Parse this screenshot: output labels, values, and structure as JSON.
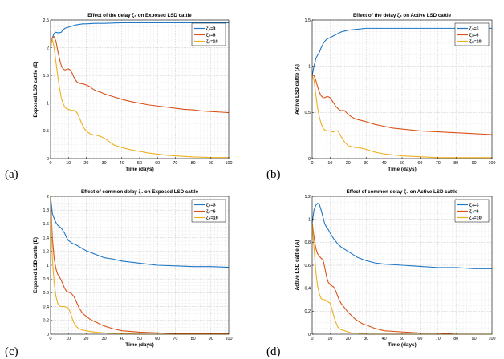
{
  "chart_data": [
    {
      "panel_label": "(a)",
      "type": "line",
      "title": "Effect of the delay ζ₃ on Exposed LSD cattle",
      "xlabel": "Time (days)",
      "ylabel": "Exposed LSD cattle (E)",
      "xlim": [
        0,
        100
      ],
      "ylim": [
        0,
        2.5
      ],
      "xticks": [
        "0",
        "10",
        "20",
        "30",
        "40",
        "50",
        "60",
        "70",
        "80",
        "90",
        "100"
      ],
      "yticks": [
        "0",
        "0.5",
        "1",
        "1.5",
        "2",
        "2.5"
      ],
      "grid": true,
      "legend_position": "top-right",
      "series": [
        {
          "name": "ζ₃=3",
          "color": "#1f77c4",
          "x": [
            0,
            1,
            2,
            3,
            4,
            5,
            6,
            7,
            8,
            9,
            10,
            12,
            14,
            16,
            18,
            20,
            25,
            30,
            40,
            50,
            60,
            70,
            80,
            90,
            100
          ],
          "y": [
            2.0,
            2.18,
            2.26,
            2.28,
            2.27,
            2.27,
            2.28,
            2.32,
            2.35,
            2.36,
            2.37,
            2.39,
            2.41,
            2.42,
            2.43,
            2.43,
            2.44,
            2.44,
            2.45,
            2.45,
            2.45,
            2.45,
            2.45,
            2.45,
            2.45
          ]
        },
        {
          "name": "ζ₃=6",
          "color": "#d95319",
          "x": [
            0,
            1,
            2,
            3,
            4,
            5,
            6,
            7,
            8,
            9,
            10,
            11,
            12,
            13,
            14,
            15,
            16,
            18,
            20,
            22,
            24,
            26,
            28,
            30,
            35,
            40,
            45,
            50,
            55,
            60,
            65,
            70,
            75,
            80,
            85,
            90,
            95,
            100
          ],
          "y": [
            2.0,
            2.18,
            2.2,
            2.12,
            1.95,
            1.8,
            1.68,
            1.62,
            1.6,
            1.61,
            1.62,
            1.6,
            1.55,
            1.48,
            1.42,
            1.38,
            1.36,
            1.35,
            1.33,
            1.3,
            1.25,
            1.22,
            1.2,
            1.17,
            1.12,
            1.07,
            1.03,
            1.0,
            0.97,
            0.95,
            0.93,
            0.91,
            0.89,
            0.88,
            0.86,
            0.85,
            0.84,
            0.83
          ]
        },
        {
          "name": "ζ₃=10",
          "color": "#edb120",
          "x": [
            0,
            1,
            2,
            3,
            4,
            5,
            6,
            7,
            8,
            9,
            10,
            11,
            12,
            13,
            14,
            15,
            16,
            17,
            18,
            19,
            20,
            22,
            24,
            26,
            28,
            30,
            32,
            34,
            36,
            38,
            40,
            45,
            50,
            55,
            60,
            65,
            70,
            80,
            90,
            100
          ],
          "y": [
            2.0,
            2.15,
            2.0,
            1.75,
            1.5,
            1.28,
            1.1,
            1.0,
            0.93,
            0.9,
            0.89,
            0.88,
            0.87,
            0.87,
            0.86,
            0.82,
            0.75,
            0.67,
            0.6,
            0.54,
            0.5,
            0.45,
            0.43,
            0.42,
            0.4,
            0.37,
            0.33,
            0.28,
            0.24,
            0.22,
            0.2,
            0.16,
            0.13,
            0.1,
            0.08,
            0.06,
            0.05,
            0.03,
            0.02,
            0.02
          ]
        }
      ]
    },
    {
      "panel_label": "(b)",
      "type": "line",
      "title": "Effect of the delay ζ₃ on Active LSD  cattle",
      "xlabel": "Time (days)",
      "ylabel": "Active LSD cattle (A)",
      "xlim": [
        0,
        100
      ],
      "ylim": [
        0,
        1.5
      ],
      "xticks": [
        "0",
        "10",
        "20",
        "30",
        "40",
        "50",
        "60",
        "70",
        "80",
        "90",
        "100"
      ],
      "yticks": [
        "0",
        "0.5",
        "1",
        "1.5"
      ],
      "grid": true,
      "legend_position": "top-right",
      "series": [
        {
          "name": "ζ₃=3",
          "color": "#1f77c4",
          "x": [
            0,
            1,
            2,
            3,
            4,
            5,
            6,
            7,
            8,
            9,
            10,
            12,
            14,
            16,
            18,
            20,
            25,
            30,
            40,
            50,
            60,
            70,
            80,
            90,
            100
          ],
          "y": [
            0.9,
            1.0,
            1.08,
            1.12,
            1.15,
            1.2,
            1.24,
            1.27,
            1.29,
            1.3,
            1.31,
            1.33,
            1.35,
            1.37,
            1.38,
            1.39,
            1.4,
            1.41,
            1.41,
            1.41,
            1.41,
            1.41,
            1.41,
            1.41,
            1.41
          ]
        },
        {
          "name": "ζ₃=6",
          "color": "#d95319",
          "x": [
            0,
            1,
            2,
            3,
            4,
            5,
            6,
            7,
            8,
            9,
            10,
            11,
            12,
            13,
            14,
            15,
            16,
            17,
            18,
            19,
            20,
            22,
            24,
            26,
            28,
            30,
            35,
            40,
            45,
            50,
            60,
            70,
            80,
            90,
            100
          ],
          "y": [
            0.9,
            0.9,
            0.85,
            0.78,
            0.72,
            0.68,
            0.66,
            0.66,
            0.67,
            0.67,
            0.66,
            0.63,
            0.6,
            0.57,
            0.55,
            0.53,
            0.52,
            0.52,
            0.52,
            0.5,
            0.48,
            0.45,
            0.43,
            0.42,
            0.41,
            0.4,
            0.37,
            0.35,
            0.33,
            0.32,
            0.3,
            0.29,
            0.28,
            0.27,
            0.26
          ]
        },
        {
          "name": "ζ₃=10",
          "color": "#edb120",
          "x": [
            0,
            1,
            2,
            3,
            4,
            5,
            6,
            7,
            8,
            9,
            10,
            11,
            12,
            13,
            14,
            15,
            16,
            18,
            20,
            22,
            24,
            26,
            28,
            30,
            35,
            40,
            45,
            50,
            60,
            70,
            80,
            90,
            100
          ],
          "y": [
            0.9,
            0.85,
            0.7,
            0.55,
            0.45,
            0.38,
            0.33,
            0.31,
            0.3,
            0.3,
            0.3,
            0.29,
            0.29,
            0.3,
            0.3,
            0.28,
            0.24,
            0.18,
            0.14,
            0.13,
            0.12,
            0.12,
            0.11,
            0.1,
            0.07,
            0.05,
            0.04,
            0.03,
            0.02,
            0.01,
            0.01,
            0.01,
            0.01
          ]
        }
      ]
    },
    {
      "panel_label": "(c)",
      "type": "line",
      "title": "Effect of common delay ζ₄ on Exposed LSD cattle",
      "xlabel": "Time (days)",
      "ylabel": "Exposed LSD cattle (E)",
      "xlim": [
        0,
        100
      ],
      "ylim": [
        0,
        2
      ],
      "xticks": [
        "0",
        "10",
        "20",
        "30",
        "40",
        "50",
        "60",
        "70",
        "80",
        "90",
        "100"
      ],
      "yticks": [
        "0",
        "0.2",
        "0.4",
        "0.6",
        "0.8",
        "1",
        "1.2",
        "1.4",
        "1.6",
        "1.8",
        "2"
      ],
      "grid": true,
      "legend_position": "top-right",
      "series": [
        {
          "name": "ζ₄=3",
          "color": "#1f77c4",
          "x": [
            0,
            1,
            2,
            3,
            4,
            5,
            6,
            7,
            8,
            9,
            10,
            12,
            14,
            16,
            18,
            20,
            25,
            30,
            35,
            40,
            50,
            60,
            70,
            80,
            90,
            100
          ],
          "y": [
            2.0,
            1.75,
            1.68,
            1.62,
            1.58,
            1.56,
            1.54,
            1.5,
            1.46,
            1.4,
            1.36,
            1.32,
            1.3,
            1.27,
            1.24,
            1.21,
            1.16,
            1.11,
            1.09,
            1.06,
            1.03,
            1.0,
            0.99,
            0.98,
            0.98,
            0.97
          ]
        },
        {
          "name": "ζ₄=6",
          "color": "#d95319",
          "x": [
            0,
            1,
            2,
            3,
            4,
            5,
            6,
            7,
            8,
            9,
            10,
            11,
            12,
            13,
            14,
            15,
            16,
            18,
            20,
            22,
            24,
            26,
            28,
            30,
            35,
            40,
            45,
            50,
            60,
            70,
            80,
            90,
            100
          ],
          "y": [
            2.0,
            1.4,
            1.1,
            0.95,
            0.87,
            0.83,
            0.78,
            0.72,
            0.66,
            0.62,
            0.61,
            0.6,
            0.58,
            0.55,
            0.5,
            0.44,
            0.38,
            0.3,
            0.26,
            0.22,
            0.19,
            0.17,
            0.14,
            0.12,
            0.08,
            0.05,
            0.04,
            0.03,
            0.02,
            0.01,
            0.01,
            0.01,
            0.01
          ]
        },
        {
          "name": "ζ₄=10",
          "color": "#edb120",
          "x": [
            0,
            1,
            2,
            3,
            4,
            5,
            6,
            7,
            8,
            9,
            10,
            11,
            12,
            13,
            14,
            15,
            16,
            18,
            20,
            22,
            25,
            30,
            35,
            40,
            50,
            60,
            70,
            80,
            90,
            100
          ],
          "y": [
            2.0,
            1.1,
            0.75,
            0.55,
            0.45,
            0.41,
            0.4,
            0.4,
            0.4,
            0.39,
            0.38,
            0.32,
            0.24,
            0.17,
            0.13,
            0.1,
            0.08,
            0.06,
            0.05,
            0.04,
            0.03,
            0.02,
            0.01,
            0.01,
            0.0,
            0.0,
            0.0,
            0.0,
            0.0,
            0.0
          ]
        }
      ]
    },
    {
      "panel_label": "(d)",
      "type": "line",
      "title": "Effect of common delay ζ₄ on Active LSD cattle",
      "xlabel": "Time (days)",
      "ylabel": "Active LSD cattle (A)",
      "xlim": [
        0,
        100
      ],
      "ylim": [
        0,
        1.2
      ],
      "xticks": [
        "0",
        "10",
        "20",
        "30",
        "40",
        "50",
        "60",
        "70",
        "80",
        "90",
        "100"
      ],
      "yticks": [
        "0",
        "0.2",
        "0.4",
        "0.6",
        "0.8",
        "1",
        "1.2"
      ],
      "grid": true,
      "legend_position": "top-right",
      "series": [
        {
          "name": "ζ₄=3",
          "color": "#1f77c4",
          "x": [
            0,
            1,
            2,
            3,
            4,
            5,
            6,
            7,
            8,
            9,
            10,
            12,
            14,
            16,
            18,
            20,
            25,
            30,
            35,
            40,
            50,
            60,
            70,
            80,
            90,
            100
          ],
          "y": [
            0.97,
            1.08,
            1.12,
            1.14,
            1.13,
            1.08,
            1.02,
            0.96,
            0.93,
            0.91,
            0.88,
            0.83,
            0.79,
            0.76,
            0.74,
            0.72,
            0.67,
            0.64,
            0.62,
            0.61,
            0.6,
            0.59,
            0.58,
            0.58,
            0.57,
            0.57
          ]
        },
        {
          "name": "ζ₄=6",
          "color": "#d95319",
          "x": [
            0,
            1,
            2,
            3,
            4,
            5,
            6,
            7,
            8,
            9,
            10,
            11,
            12,
            13,
            14,
            15,
            16,
            18,
            20,
            22,
            24,
            26,
            28,
            30,
            35,
            40,
            50,
            60,
            70,
            80,
            90,
            100
          ],
          "y": [
            0.97,
            0.85,
            0.75,
            0.7,
            0.68,
            0.66,
            0.65,
            0.58,
            0.5,
            0.45,
            0.43,
            0.42,
            0.41,
            0.38,
            0.34,
            0.3,
            0.27,
            0.23,
            0.19,
            0.16,
            0.13,
            0.11,
            0.09,
            0.08,
            0.05,
            0.03,
            0.02,
            0.01,
            0.01,
            0.0,
            0.0,
            0.0
          ]
        },
        {
          "name": "ζ₄=10",
          "color": "#edb120",
          "x": [
            0,
            1,
            2,
            3,
            4,
            5,
            6,
            7,
            8,
            9,
            10,
            11,
            12,
            13,
            14,
            15,
            16,
            18,
            20,
            22,
            25,
            30,
            35,
            40,
            50,
            60,
            70,
            80,
            90,
            100
          ],
          "y": [
            0.97,
            0.75,
            0.55,
            0.42,
            0.35,
            0.31,
            0.3,
            0.3,
            0.29,
            0.28,
            0.27,
            0.22,
            0.16,
            0.11,
            0.07,
            0.05,
            0.04,
            0.03,
            0.02,
            0.01,
            0.01,
            0.0,
            0.0,
            0.0,
            0.0,
            0.0,
            0.0,
            0.0,
            0.0,
            0.0
          ]
        }
      ]
    }
  ]
}
